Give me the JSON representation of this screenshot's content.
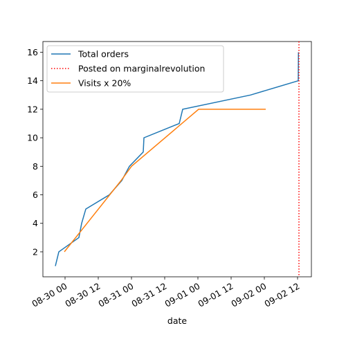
{
  "chart_data": {
    "type": "line",
    "x_label": "date",
    "xlim": [
      "08-29 16:00",
      "09-02 17:00"
    ],
    "xticks": [
      "08-30 00",
      "08-30 12",
      "08-31 00",
      "08-31 12",
      "09-01 00",
      "09-01 12",
      "09-02 00",
      "09-02 12"
    ],
    "ylim": [
      0.25,
      16.75
    ],
    "yticks": [
      2,
      4,
      6,
      8,
      10,
      12,
      14,
      16
    ],
    "legend": "upper left",
    "series": [
      {
        "name": "Total orders",
        "color": "#1f77b4",
        "x": [
          "08-29 20:30",
          "08-29 21:45",
          "08-30 05:00",
          "08-30 06:00",
          "08-30 07:30",
          "08-30 16:00",
          "08-30 20:30",
          "08-30 23:15",
          "08-31 04:15",
          "08-31 04:30",
          "08-31 17:15",
          "08-31 18:30",
          "09-01 19:00",
          "09-02 12:15",
          "09-02 12:20"
        ],
        "values": [
          1,
          2,
          3,
          4,
          5,
          6,
          7,
          8,
          9,
          10,
          11,
          12,
          13,
          14,
          16
        ]
      },
      {
        "name": "Visits x 20%",
        "color": "#ff7f0e",
        "x": [
          "08-29 23:45",
          "08-30 20:15",
          "08-31 00:00",
          "09-01 00:15",
          "09-02 00:30"
        ],
        "values": [
          2,
          7,
          8,
          12,
          12
        ]
      }
    ],
    "vlines": [
      {
        "name": "Posted on marginalrevolution",
        "x": "09-02 12:30",
        "color": "#ff0000"
      }
    ]
  }
}
